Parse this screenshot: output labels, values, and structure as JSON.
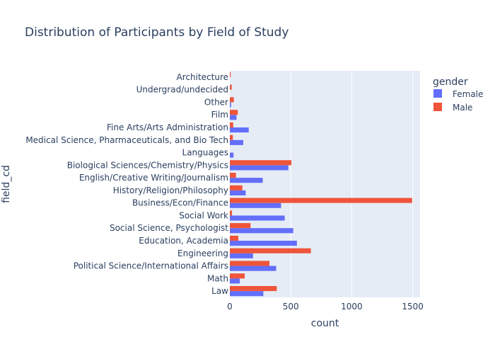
{
  "chart_data": {
    "type": "bar",
    "orientation": "horizontal",
    "title": "Distribution of Participants by Field of Study",
    "xlabel": "count",
    "ylabel": "field_cd",
    "xlim": [
      0,
      1560
    ],
    "xticks": [
      0,
      500,
      1000,
      1500
    ],
    "xtick_labels": [
      "0",
      "500",
      "1000",
      "1500"
    ],
    "grid": true,
    "legend_title": "gender",
    "legend_position": "top-right",
    "categories": [
      "Law",
      "Math",
      "Political Science/International Affairs",
      "Engineering",
      "Education, Academia",
      "Social Science, Psychologist",
      "Social Work",
      "Business/Econ/Finance",
      "History/Religion/Philosophy",
      "English/Creative Writing/Journalism",
      "Biological Sciences/Chemistry/Physics",
      "Languages",
      "Medical Science, Pharmaceuticals, and Bio Tech",
      "Fine Arts/Arts Administration",
      "Film",
      "Other",
      "Undergrad/undecided",
      "Architecture"
    ],
    "series": [
      {
        "name": "Female",
        "color": "#636efa",
        "values": [
          275,
          82,
          380,
          190,
          550,
          520,
          450,
          420,
          130,
          270,
          480,
          30,
          110,
          155,
          55,
          10,
          0,
          0
        ]
      },
      {
        "name": "Male",
        "color": "#ef553b",
        "values": [
          385,
          122,
          325,
          665,
          70,
          170,
          18,
          1495,
          103,
          50,
          505,
          0,
          25,
          28,
          65,
          33,
          15,
          7
        ]
      }
    ]
  }
}
